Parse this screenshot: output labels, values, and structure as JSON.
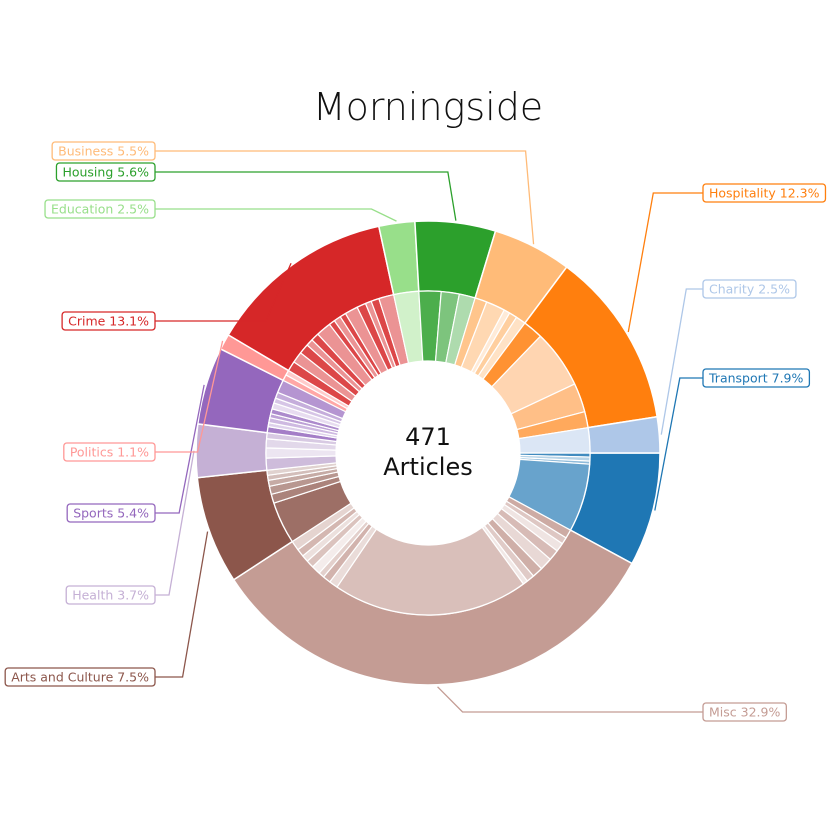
{
  "chart_data": {
    "type": "pie",
    "title": "Morningside",
    "center": {
      "count": "471",
      "unit": "Articles"
    },
    "segments": [
      {
        "name": "Transport",
        "label": "Transport 7.9%",
        "value": 7.9,
        "color": "#1f77b4",
        "side": "right",
        "sub": [
          0.4,
          0.4,
          0.3,
          6.8
        ]
      },
      {
        "name": "Misc",
        "label": "Misc 32.9%",
        "value": 32.9,
        "color": "#c49c94",
        "side": "right",
        "sub": [
          0.9,
          0.7,
          0.9,
          1.1,
          1.3,
          1.1,
          0.8,
          0.5,
          20.1,
          0.9,
          0.8,
          0.6,
          0.9,
          0.8,
          0.7,
          0.8,
          1.0
        ]
      },
      {
        "name": "Arts and Culture",
        "label": "Arts and Culture 7.5%",
        "value": 7.5,
        "color": "#8c564b",
        "side": "left",
        "sub": [
          4.2,
          0.9,
          0.8,
          0.6,
          0.5,
          0.5
        ]
      },
      {
        "name": "Health",
        "label": "Health 3.7%",
        "value": 3.7,
        "color": "#c5b0d5",
        "side": "left",
        "sub": [
          1.2,
          1.0,
          0.9,
          0.6
        ]
      },
      {
        "name": "Sports",
        "label": "Sports 5.4%",
        "value": 5.4,
        "color": "#9467bd",
        "side": "left",
        "sub": [
          0.6,
          0.4,
          0.5,
          0.4,
          0.5,
          0.6,
          0.5,
          0.6,
          1.3
        ]
      },
      {
        "name": "Politics",
        "label": "Politics 1.1%",
        "value": 1.1,
        "color": "#ff9896",
        "side": "left",
        "sub": [
          0.6,
          0.5
        ]
      },
      {
        "name": "Crime",
        "label": "Crime 13.1%",
        "value": 13.1,
        "color": "#d62728",
        "side": "left",
        "sub": [
          1.0,
          1.1,
          1.0,
          0.7,
          0.8,
          1.5,
          0.6,
          0.7,
          0.6,
          1.3,
          0.9,
          0.6,
          0.8,
          1.5
        ]
      },
      {
        "name": "Education",
        "label": "Education 2.5%",
        "value": 2.5,
        "color": "#98df8a",
        "side": "left",
        "sub": [
          2.5
        ]
      },
      {
        "name": "Housing",
        "label": "Housing 5.6%",
        "value": 5.6,
        "color": "#2ca02c",
        "side": "left",
        "sub": [
          2.2,
          1.8,
          1.6
        ]
      },
      {
        "name": "Business",
        "label": "Business 5.5%",
        "value": 5.5,
        "color": "#ffbb78",
        "side": "left",
        "sub": [
          1.2,
          1.9,
          0.6,
          0.8,
          1.0
        ]
      },
      {
        "name": "Hospitality",
        "label": "Hospitality 12.3%",
        "value": 12.3,
        "color": "#ff7f0e",
        "side": "right",
        "sub": [
          2.0,
          5.8,
          2.9,
          1.6
        ]
      },
      {
        "name": "Charity",
        "label": "Charity 2.5%",
        "value": 2.5,
        "color": "#aec7e8",
        "side": "right",
        "sub": [
          2.5
        ]
      }
    ]
  }
}
